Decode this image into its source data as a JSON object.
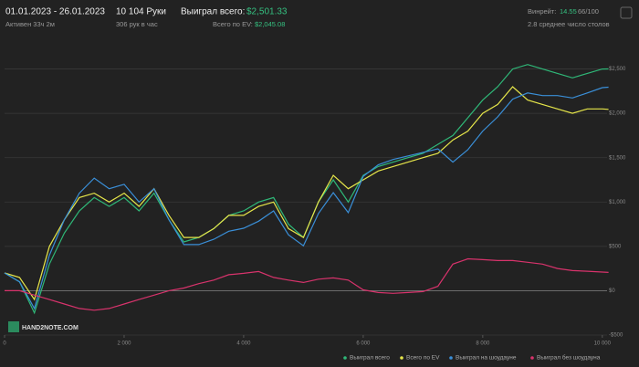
{
  "header": {
    "period": "01.01.2023 - 26.01.2023",
    "active": "Активен 33ч 2м",
    "hands": "10 104 Руки",
    "hands_per_hour": "306 рук в час",
    "won_label": "Выиграл всего:",
    "won_value": "$2,501.33",
    "ev_label": "Всего по EV:",
    "ev_value": "$2,045.08",
    "winrate_label": "Винрейт:",
    "winrate_value": "14.55",
    "winrate_unit": "66/100",
    "tables": "2.8 среднее число столов",
    "logo": "HAND2NOTE.COM"
  },
  "chart_data": {
    "type": "line",
    "x": [
      0,
      250,
      500,
      750,
      1000,
      1250,
      1500,
      1750,
      2000,
      2250,
      2500,
      2750,
      3000,
      3250,
      3500,
      3750,
      4000,
      4250,
      4500,
      4750,
      5000,
      5250,
      5500,
      5750,
      6000,
      6250,
      6500,
      6750,
      7000,
      7250,
      7500,
      7750,
      8000,
      8250,
      8500,
      8750,
      9000,
      9250,
      9500,
      9750,
      10000,
      10104
    ],
    "xlim": [
      0,
      10400
    ],
    "xticks": [
      0,
      {
        "value": 2000,
        "label": "2 000"
      },
      {
        "value": 4000,
        "label": "4 000"
      },
      {
        "value": 6000,
        "label": "6 000"
      },
      {
        "value": 8000,
        "label": "8 000"
      },
      {
        "value": 10000,
        "label": "10 000"
      }
    ],
    "ylim": [
      -500,
      3000
    ],
    "yticks": [
      {
        "value": -500,
        "label": "-$500"
      },
      {
        "value": 0,
        "label": "$0"
      },
      {
        "value": 500,
        "label": "$500"
      },
      {
        "value": 1000,
        "label": "$1,000"
      },
      {
        "value": 1500,
        "label": "$1,500"
      },
      {
        "value": 2000,
        "label": "$2,000"
      },
      {
        "value": 2500,
        "label": "$2,500"
      }
    ],
    "grid": true,
    "series": [
      {
        "name": "Выиграл всего",
        "color": "#2fb878",
        "values": [
          200,
          100,
          -250,
          300,
          650,
          900,
          1050,
          950,
          1050,
          900,
          1100,
          800,
          550,
          600,
          700,
          850,
          900,
          1000,
          1050,
          750,
          600,
          1000,
          1250,
          1000,
          1300,
          1400,
          1450,
          1500,
          1550,
          1650,
          1750,
          1950,
          2150,
          2300,
          2500,
          2550,
          2500,
          2450,
          2400,
          2450,
          2500,
          2501
        ]
      },
      {
        "name": "Всего по EV",
        "color": "#e6e64a",
        "values": [
          200,
          150,
          -100,
          500,
          800,
          1050,
          1100,
          1000,
          1100,
          950,
          1150,
          850,
          600,
          600,
          700,
          850,
          850,
          950,
          1000,
          700,
          600,
          1000,
          1300,
          1150,
          1250,
          1350,
          1400,
          1450,
          1500,
          1550,
          1700,
          1800,
          2000,
          2100,
          2300,
          2150,
          2100,
          2050,
          2000,
          2050,
          2050,
          2045
        ]
      },
      {
        "name": "Выиграл на шоудауне",
        "color": "#3a8fd8",
        "values": [
          200,
          100,
          -200,
          400,
          800,
          1100,
          1270,
          1150,
          1200,
          1000,
          1150,
          800,
          520,
          520,
          580,
          670,
          704,
          784,
          900,
          630,
          507,
          870,
          1106,
          880,
          1290,
          1420,
          1480,
          1520,
          1560,
          1600,
          1450,
          1590,
          1800,
          1960,
          2160,
          2230,
          2200,
          2200,
          2173,
          2230,
          2290,
          2295
        ]
      },
      {
        "name": "Выиграл без шоудауна",
        "color": "#d8336c",
        "values": [
          0,
          0,
          -50,
          -100,
          -150,
          -200,
          -220,
          -200,
          -150,
          -100,
          -50,
          0,
          30,
          80,
          120,
          180,
          196,
          216,
          150,
          120,
          93,
          130,
          144,
          120,
          10,
          -20,
          -30,
          -20,
          -10,
          50,
          300,
          360,
          350,
          340,
          340,
          320,
          300,
          250,
          227,
          220,
          210,
          206
        ]
      }
    ]
  }
}
